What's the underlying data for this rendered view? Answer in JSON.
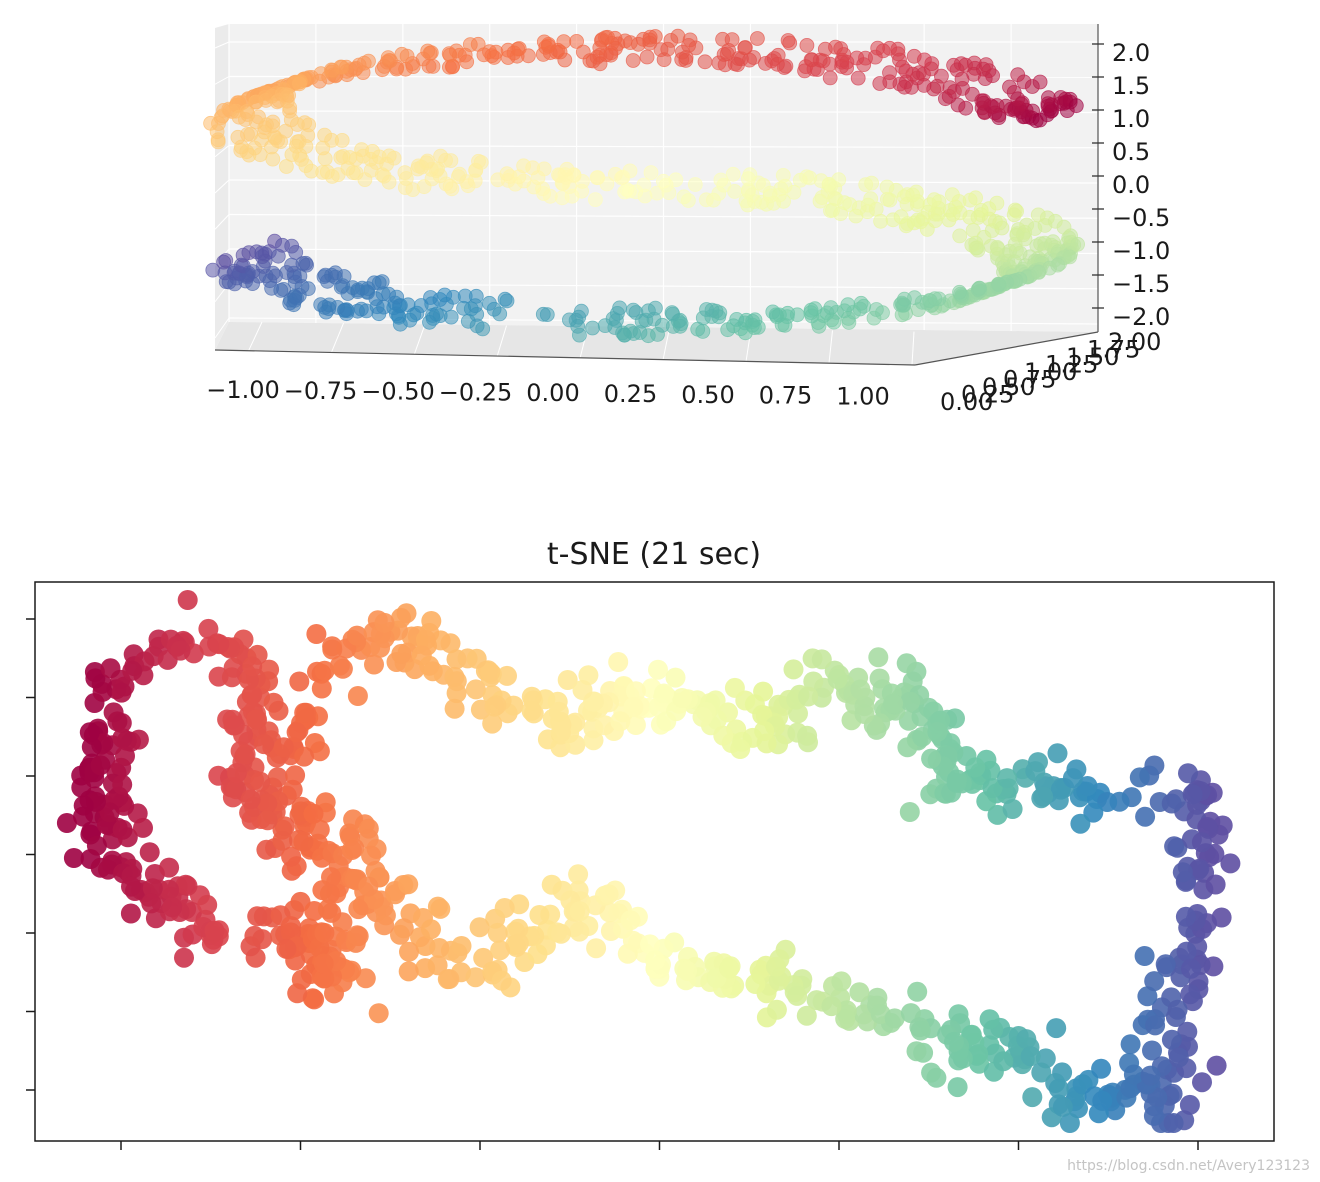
{
  "chart_data": [
    {
      "type": "scatter",
      "projection": "3d",
      "title": "",
      "dataset": "S-curve",
      "n_points": 1000,
      "colormap": "Spectral",
      "alpha": 0.5,
      "grid": true,
      "xlim": [
        -1.0,
        1.0
      ],
      "ylim": [
        0.0,
        2.0
      ],
      "zlim": [
        -2.0,
        2.0
      ],
      "x_tick_labels": [
        "−1.00",
        "−0.75",
        "−0.50",
        "−0.25",
        "0.00",
        "0.25",
        "0.50",
        "0.75",
        "1.00"
      ],
      "y_tick_labels": [
        "0.00",
        "0.25",
        "0.50",
        "0.75",
        "1.00",
        "1.25",
        "1.50",
        "1.75",
        "2.00"
      ],
      "z_tick_labels": [
        "2.0",
        "1.5",
        "1.0",
        "0.5",
        "0.0",
        "−0.5",
        "−1.0",
        "−1.5",
        "−2.0"
      ]
    },
    {
      "type": "scatter",
      "title": "t-SNE (21 sec)",
      "colormap": "Spectral",
      "n_points": 1000,
      "grid": false,
      "x_tick_labels": [],
      "y_tick_labels": [],
      "n_x_ticks": 7,
      "n_y_ticks": 7
    }
  ],
  "watermark": "https://blog.csdn.net/Avery123123"
}
